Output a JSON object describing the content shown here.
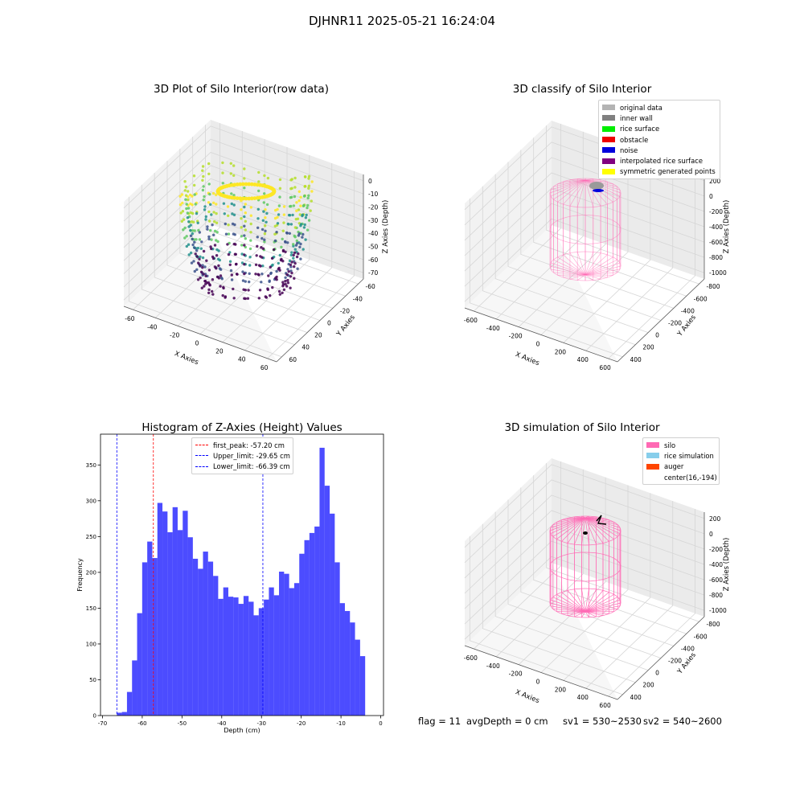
{
  "figure_title": "DJHNR11 2025-05-21 16:24:04",
  "panels": {
    "raw": {
      "title": "3D Plot of Silo Interior(row data)",
      "xlabel": "X Axies",
      "ylabel": "Y Axies",
      "zlabel": "Z Axies (Depth)",
      "xticks": [
        "-60",
        "-40",
        "-20",
        "0",
        "20",
        "40",
        "60"
      ],
      "yticks": [
        "60",
        "40",
        "20",
        "0",
        "-20",
        "-40",
        "-60"
      ],
      "zticks": [
        "0",
        "-10",
        "-20",
        "-30",
        "-40",
        "-50",
        "-60",
        "-70"
      ]
    },
    "classify": {
      "title": "3D classify of Silo Interior",
      "xlabel": "X Axies",
      "ylabel": "Y Axies",
      "zlabel": "Z Axies (Depth)",
      "xticks": [
        "-600",
        "-400",
        "-200",
        "0",
        "200",
        "400",
        "600"
      ],
      "yticks": [
        "400",
        "200",
        "0",
        "-200",
        "-400",
        "-600",
        "-800"
      ],
      "zticks": [
        "200",
        "0",
        "-200",
        "-400",
        "-600",
        "-800",
        "-1000"
      ],
      "legend": [
        {
          "label": "original data",
          "color": "#b3b3b3"
        },
        {
          "label": "inner wall",
          "color": "#808080"
        },
        {
          "label": "rice surface",
          "color": "#00ee00"
        },
        {
          "label": "obstacle",
          "color": "#ee0000"
        },
        {
          "label": "noise",
          "color": "#0000dd"
        },
        {
          "label": "interpolated rice surface",
          "color": "#800080"
        },
        {
          "label": "symmetric generated points",
          "color": "#ffff00"
        }
      ]
    },
    "simulation": {
      "title": "3D simulation of Silo Interior",
      "xlabel": "X Axies",
      "ylabel": "Y Axies",
      "zlabel": "Z Axies (Depth)",
      "xticks": [
        "-600",
        "-400",
        "-200",
        "0",
        "200",
        "400",
        "600"
      ],
      "yticks": [
        "400",
        "200",
        "0",
        "-200",
        "-400",
        "-600",
        "-800"
      ],
      "zticks": [
        "200",
        "0",
        "-200",
        "-400",
        "-600",
        "-800",
        "-1000"
      ],
      "legend": [
        {
          "label": "silo",
          "color": "#ff69b4"
        },
        {
          "label": "rice simulation",
          "color": "#87ceeb"
        },
        {
          "label": "auger",
          "color": "#ff4500"
        },
        {
          "label": "center(16,-194)",
          "color": "transparent"
        }
      ]
    }
  },
  "footer": {
    "flag": "flag = 11",
    "avg": "avgDepth = 0 cm",
    "sv1": "sv1 = 530~2530",
    "sv2": "sv2 = 540~2600"
  },
  "chart_data": {
    "type": "bar",
    "title": "Histogram of Z-Axies (Height) Values",
    "xlabel": "Depth (cm)",
    "ylabel": "Frequency",
    "xlim": [
      -70.5,
      0.7
    ],
    "ylim": [
      0,
      393
    ],
    "xticks": [
      -70,
      -60,
      -50,
      -40,
      -30,
      -20,
      -10,
      0
    ],
    "yticks": [
      0,
      50,
      100,
      150,
      200,
      250,
      300,
      350
    ],
    "bar_color": "#0000ff",
    "bin_start": -66.39,
    "bin_width": 1.275,
    "values": [
      4,
      5,
      33,
      77,
      143,
      214,
      243,
      220,
      297,
      285,
      256,
      291,
      259,
      286,
      249,
      219,
      205,
      229,
      215,
      195,
      163,
      179,
      166,
      165,
      156,
      167,
      159,
      140,
      150,
      162,
      179,
      168,
      201,
      198,
      178,
      185,
      226,
      245,
      255,
      264,
      374,
      321,
      282,
      214,
      157,
      146,
      130,
      106,
      83
    ],
    "vlines": [
      {
        "label": "first_peak: -57.20 cm",
        "x": -57.2,
        "color": "#ff0000"
      },
      {
        "label": "Upper_limit: -29.65 cm",
        "x": -29.65,
        "color": "#0000ff"
      },
      {
        "label": "Lower_limit: -66.39 cm",
        "x": -66.39,
        "color": "#0000ff"
      }
    ]
  }
}
